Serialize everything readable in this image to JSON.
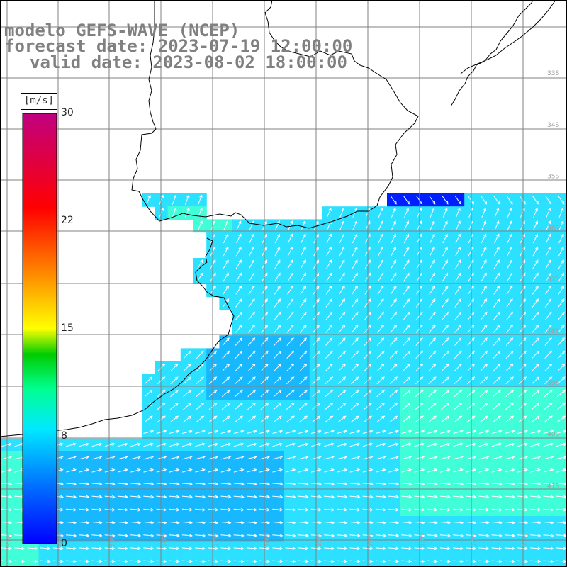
{
  "title": {
    "line1": "modelo GEFS-WAVE (NCEP)",
    "line2": "forecast date: 2023-07-19 12:00:00",
    "line3": "valid date: 2023-08-02 18:00:00"
  },
  "colorbar": {
    "unit": "[m/s]",
    "ticks": [
      "30",
      "22",
      "15",
      "8",
      "0"
    ],
    "tick_values": [
      30,
      22,
      15,
      8,
      0
    ],
    "range": [
      0,
      30
    ],
    "colors": [
      "#0000ff",
      "#0080ff",
      "#00e8ff",
      "#00ff80",
      "#00c000",
      "#ffff00",
      "#ff8000",
      "#ff0000",
      "#c00080"
    ]
  },
  "map": {
    "variable": "wind speed and direction",
    "field_colors": {
      "dark_blue": "#0020ff",
      "blue": "#0a60ff",
      "light_blue": "#18b8ff",
      "cyan": "#2ce0ff",
      "aqua_green": "#40ffd8"
    },
    "coastline_color": "#000000",
    "grid_color": "#808080",
    "lon_labels": [
      "61W",
      "60W",
      "59W",
      "58W",
      "57W",
      "56W",
      "55W",
      "54W",
      "53W",
      "52W",
      "51W"
    ],
    "lat_labels": [
      "33S",
      "34S",
      "35S",
      "36S",
      "37S",
      "38S",
      "39S",
      "40S",
      "41S"
    ]
  }
}
